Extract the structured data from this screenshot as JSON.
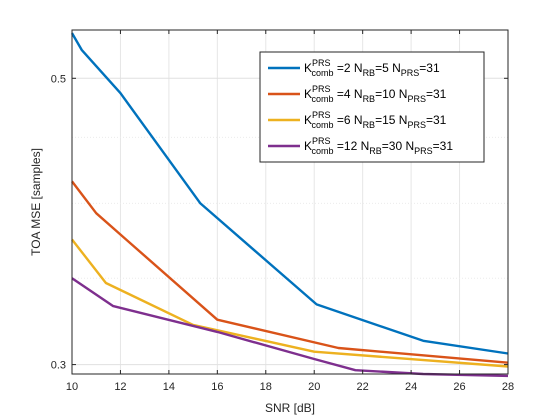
{
  "chart_data": {
    "type": "line",
    "xlabel": "SNR [dB]",
    "ylabel": "TOA MSE [samples]",
    "xlim": [
      10,
      28
    ],
    "ylim": [
      0.295,
      0.545
    ],
    "yscale": "log",
    "grid": true,
    "legend_position": "top-right",
    "x_ticks": [
      10,
      12,
      14,
      16,
      18,
      20,
      22,
      24,
      26,
      28
    ],
    "y_ticks": [
      0.3,
      0.5
    ],
    "series": [
      {
        "name": "K_comb^PRS=2 N_RB=5 N_PRS=31",
        "legend": {
          "k_sup": "PRS",
          "k_sub": "comb",
          "k_val": "=2",
          "rb_sub": "RB",
          "rb_val": "=5",
          "prs_sub": "PRS",
          "prs_val": "=31"
        },
        "color": "#0072BD",
        "x": [
          10,
          10.4,
          12,
          15.3,
          20.1,
          24.5,
          28
        ],
        "y": [
          0.542,
          0.526,
          0.487,
          0.4,
          0.334,
          0.313,
          0.306
        ]
      },
      {
        "name": "K_comb^PRS=4 N_RB=10 N_PRS=31",
        "legend": {
          "k_sup": "PRS",
          "k_sub": "comb",
          "k_val": "=4",
          "rb_sub": "RB",
          "rb_val": "=10",
          "prs_sub": "PRS",
          "prs_val": "=31"
        },
        "color": "#D95319",
        "x": [
          10,
          11,
          16,
          21,
          28
        ],
        "y": [
          0.416,
          0.393,
          0.325,
          0.309,
          0.301
        ]
      },
      {
        "name": "K_comb^PRS=6 N_RB=15 N_PRS=31",
        "legend": {
          "k_sup": "PRS",
          "k_sub": "comb",
          "k_val": "=6",
          "rb_sub": "RB",
          "rb_val": "=15",
          "prs_sub": "PRS",
          "prs_val": "=31"
        },
        "color": "#EDB120",
        "x": [
          10,
          11.4,
          15,
          20,
          28
        ],
        "y": [
          0.375,
          0.347,
          0.322,
          0.307,
          0.299
        ]
      },
      {
        "name": "K_comb^PRS=12 N_RB=30 N_PRS=31",
        "legend": {
          "k_sup": "PRS",
          "k_sub": "comb",
          "k_val": "=12",
          "rb_sub": "RB",
          "rb_val": "=30",
          "prs_sub": "PRS",
          "prs_val": "=31"
        },
        "color": "#7E2F8E",
        "x": [
          10,
          11.7,
          16,
          20,
          21.7,
          24.5,
          28
        ],
        "y": [
          0.35,
          0.333,
          0.318,
          0.303,
          0.297,
          0.295,
          0.294
        ]
      }
    ]
  }
}
